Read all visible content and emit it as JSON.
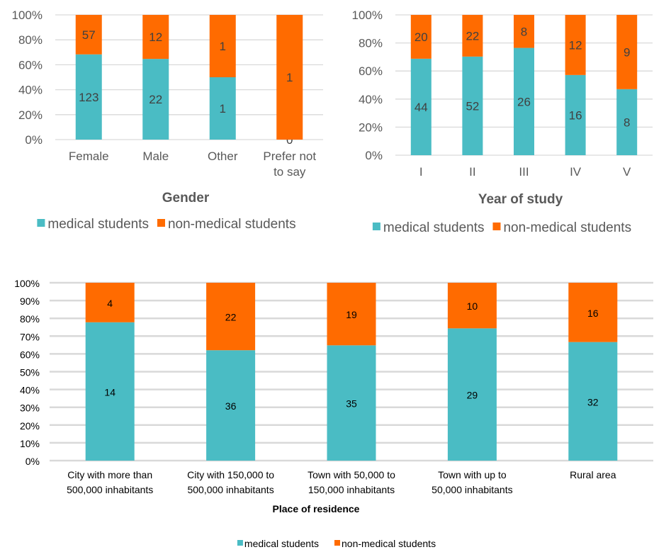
{
  "colors": {
    "medical": "#4ABCC4",
    "non_medical": "#FF6B00"
  },
  "chart_data": [
    {
      "id": "gender",
      "type": "bar",
      "stacked": "percent",
      "title": "",
      "xlabel": "Gender",
      "ylabel": "",
      "ylim": [
        0,
        100
      ],
      "yticks": [
        "0%",
        "20%",
        "40%",
        "60%",
        "80%",
        "100%"
      ],
      "categories": [
        [
          "Female"
        ],
        [
          "Male"
        ],
        [
          "Other"
        ],
        [
          "Prefer not",
          "to say"
        ]
      ],
      "series": [
        {
          "name": "medical students",
          "values": [
            123,
            22,
            1,
            0
          ]
        },
        {
          "name": "non-medical students",
          "values": [
            57,
            12,
            1,
            1
          ]
        }
      ],
      "legend": "bottom",
      "grid": true
    },
    {
      "id": "year",
      "type": "bar",
      "stacked": "percent",
      "title": "",
      "xlabel": "Year of study",
      "ylabel": "",
      "ylim": [
        0,
        100
      ],
      "yticks": [
        "0%",
        "20%",
        "40%",
        "60%",
        "80%",
        "100%"
      ],
      "categories": [
        [
          "I"
        ],
        [
          "II"
        ],
        [
          "III"
        ],
        [
          "IV"
        ],
        [
          "V"
        ]
      ],
      "series": [
        {
          "name": "medical students",
          "values": [
            44,
            52,
            26,
            16,
            8
          ]
        },
        {
          "name": "non-medical students",
          "values": [
            20,
            22,
            8,
            12,
            9
          ]
        }
      ],
      "legend": "bottom",
      "grid": true
    },
    {
      "id": "residence",
      "type": "bar",
      "stacked": "percent",
      "title": "",
      "xlabel": "Place of residence",
      "ylabel": "",
      "ylim": [
        0,
        100
      ],
      "yticks": [
        "0%",
        "10%",
        "20%",
        "30%",
        "40%",
        "50%",
        "60%",
        "70%",
        "80%",
        "90%",
        "100%"
      ],
      "categories": [
        [
          "City with more than",
          "500,000 inhabitants"
        ],
        [
          "City with 150,000 to",
          "500,000 inhabitants"
        ],
        [
          "Town with 50,000 to",
          "150,000 inhabitants"
        ],
        [
          "Town with up to",
          "50,000 inhabitants"
        ],
        [
          "Rural area"
        ]
      ],
      "series": [
        {
          "name": "medical students",
          "values": [
            14,
            36,
            35,
            29,
            32
          ]
        },
        {
          "name": "non-medical students",
          "values": [
            4,
            22,
            19,
            10,
            16
          ]
        }
      ],
      "legend": "bottom",
      "grid": true
    }
  ]
}
